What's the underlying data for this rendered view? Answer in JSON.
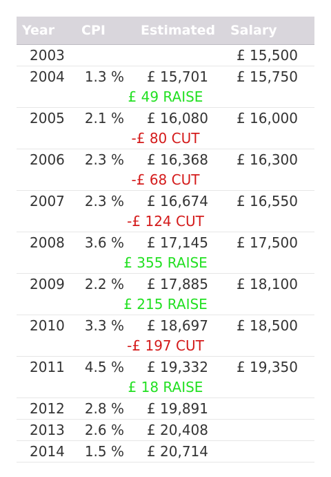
{
  "header": {
    "year": "Year",
    "cpi": "CPI",
    "estimated": "Estimated",
    "salary": "Salary"
  },
  "rows": [
    {
      "year": "2003",
      "cpi": "",
      "estimated": "",
      "salary": "£ 15,500",
      "diff": "",
      "diff_type": ""
    },
    {
      "year": "2004",
      "cpi": "1.3 %",
      "estimated": "£ 15,701",
      "salary": "£ 15,750",
      "diff": "£ 49 RAISE",
      "diff_type": "raise"
    },
    {
      "year": "2005",
      "cpi": "2.1 %",
      "estimated": "£ 16,080",
      "salary": "£ 16,000",
      "diff": "-£ 80 CUT",
      "diff_type": "cut"
    },
    {
      "year": "2006",
      "cpi": "2.3 %",
      "estimated": "£ 16,368",
      "salary": "£ 16,300",
      "diff": "-£ 68 CUT",
      "diff_type": "cut"
    },
    {
      "year": "2007",
      "cpi": "2.3 %",
      "estimated": "£ 16,674",
      "salary": "£ 16,550",
      "diff": "-£ 124 CUT",
      "diff_type": "cut"
    },
    {
      "year": "2008",
      "cpi": "3.6 %",
      "estimated": "£ 17,145",
      "salary": "£ 17,500",
      "diff": "£ 355 RAISE",
      "diff_type": "raise"
    },
    {
      "year": "2009",
      "cpi": "2.2 %",
      "estimated": "£ 17,885",
      "salary": "£ 18,100",
      "diff": "£ 215 RAISE",
      "diff_type": "raise"
    },
    {
      "year": "2010",
      "cpi": "3.3 %",
      "estimated": "£ 18,697",
      "salary": "£ 18,500",
      "diff": "-£ 197 CUT",
      "diff_type": "cut"
    },
    {
      "year": "2011",
      "cpi": "4.5 %",
      "estimated": "£ 19,332",
      "salary": "£ 19,350",
      "diff": "£ 18 RAISE",
      "diff_type": "raise"
    },
    {
      "year": "2012",
      "cpi": "2.8 %",
      "estimated": "£ 19,891",
      "salary": "",
      "diff": "",
      "diff_type": ""
    },
    {
      "year": "2013",
      "cpi": "2.6 %",
      "estimated": "£ 20,408",
      "salary": "",
      "diff": "",
      "diff_type": ""
    },
    {
      "year": "2014",
      "cpi": "1.5 %",
      "estimated": "£ 20,714",
      "salary": "",
      "diff": "",
      "diff_type": ""
    }
  ],
  "colors": {
    "raise": "#22e022",
    "cut": "#d41a1a",
    "header_bg": "#d9d6dc"
  }
}
